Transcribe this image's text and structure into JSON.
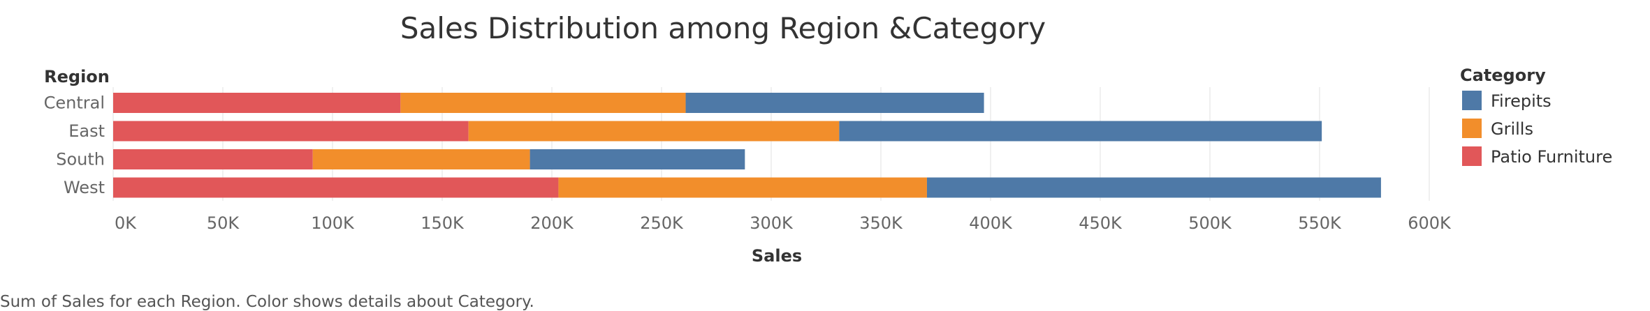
{
  "chart_data": {
    "type": "bar",
    "orientation": "horizontal",
    "stacked": true,
    "title": "Sales Distribution among Region &Category",
    "xlabel": "Sales",
    "ylabel": "Region",
    "categories": [
      "Central",
      "East",
      "South",
      "West"
    ],
    "series": [
      {
        "name": "Patio Furniture",
        "color": "#E15759",
        "values": [
          131000,
          162000,
          91000,
          203000
        ]
      },
      {
        "name": "Grills",
        "color": "#F28E2B",
        "values": [
          130000,
          169000,
          99000,
          168000
        ]
      },
      {
        "name": "Firepits",
        "color": "#4E79A7",
        "values": [
          136000,
          220000,
          98000,
          207000
        ]
      }
    ],
    "xlim": [
      0,
      600000
    ],
    "xticks": [
      0,
      50000,
      100000,
      150000,
      200000,
      250000,
      300000,
      350000,
      400000,
      450000,
      500000,
      550000,
      600000
    ],
    "xtick_labels": [
      "0K",
      "50K",
      "100K",
      "150K",
      "200K",
      "250K",
      "300K",
      "350K",
      "400K",
      "450K",
      "500K",
      "550K",
      "600K"
    ],
    "grid": true,
    "legend": {
      "title": "Category",
      "position": "right",
      "items": [
        {
          "name": "Firepits",
          "color": "#4E79A7"
        },
        {
          "name": "Grills",
          "color": "#F28E2B"
        },
        {
          "name": "Patio Furniture",
          "color": "#E15759"
        }
      ]
    },
    "caption": "Sum of Sales for each Region.  Color shows details about Category."
  }
}
